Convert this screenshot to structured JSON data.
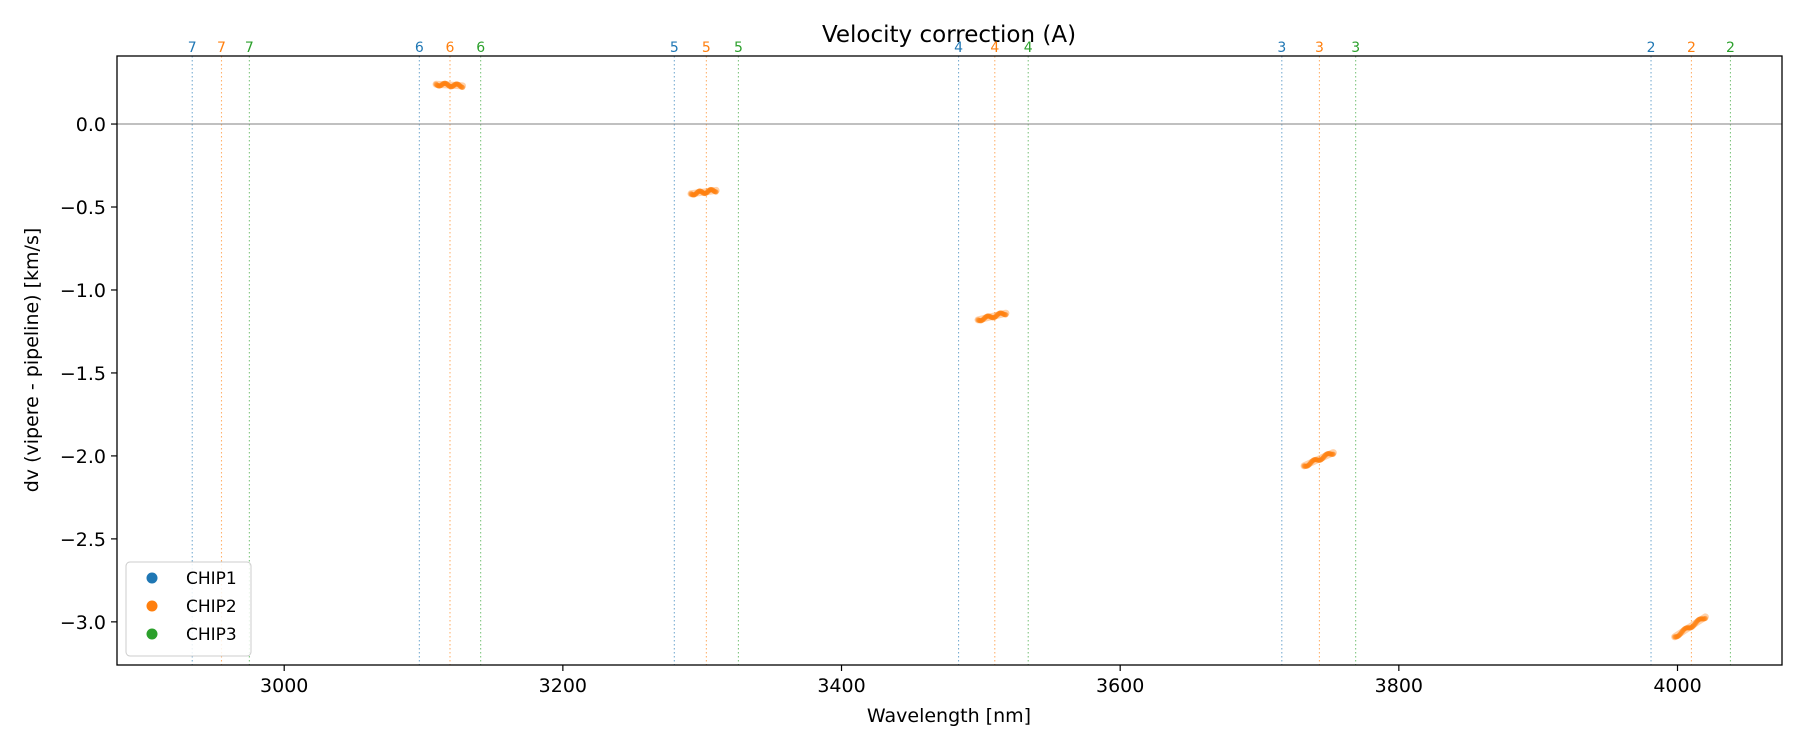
{
  "chart_data": {
    "type": "scatter",
    "title": "Velocity correction (A)",
    "xlabel": "Wavelength [nm]",
    "ylabel": "dv (vipere - pipeline) [km/s]",
    "xlim": [
      2880,
      4075
    ],
    "ylim": [
      -3.26,
      0.41
    ],
    "xticks": [
      3000,
      3200,
      3400,
      3600,
      3800,
      4000
    ],
    "yticks": [
      0.0,
      -0.5,
      -1.0,
      -1.5,
      -2.0,
      -2.5,
      -3.0
    ],
    "ytick_labels": [
      "0.0",
      "−0.5",
      "−1.0",
      "−1.5",
      "−2.0",
      "−2.5",
      "−3.0"
    ],
    "reference_line": 0.0,
    "legend": {
      "placement": "lower-left",
      "entries": [
        {
          "name": "CHIP1",
          "color": "#1f77b4"
        },
        {
          "name": "CHIP2",
          "color": "#ff7f0e"
        },
        {
          "name": "CHIP3",
          "color": "#2ca02c"
        }
      ]
    },
    "order_boundaries": [
      {
        "order": "7",
        "chip1": 2934,
        "chip2": 2955,
        "chip3": 2975
      },
      {
        "order": "6",
        "chip1": 3097,
        "chip2": 3119,
        "chip3": 3141
      },
      {
        "order": "5",
        "chip1": 3280,
        "chip2": 3303,
        "chip3": 3326
      },
      {
        "order": "4",
        "chip1": 3484,
        "chip2": 3510,
        "chip3": 3534
      },
      {
        "order": "3",
        "chip1": 3716,
        "chip2": 3743,
        "chip3": 3769
      },
      {
        "order": "2",
        "chip1": 3981,
        "chip2": 4010,
        "chip3": 4038
      }
    ],
    "series": [
      {
        "name": "CHIP2",
        "color": "#ff7f0e",
        "segments": [
          {
            "order": "6",
            "x": [
              3109,
              3128
            ],
            "y": [
              0.24,
              0.23
            ]
          },
          {
            "order": "5",
            "x": [
              3292,
              3310
            ],
            "y": [
              -0.42,
              -0.4
            ]
          },
          {
            "order": "4",
            "x": [
              3498,
              3518
            ],
            "y": [
              -1.18,
              -1.14
            ]
          },
          {
            "order": "3",
            "x": [
              3732,
              3753
            ],
            "y": [
              -2.06,
              -1.98
            ]
          },
          {
            "order": "2",
            "x": [
              3998,
              4020
            ],
            "y": [
              -3.09,
              -2.97
            ]
          }
        ]
      }
    ]
  }
}
